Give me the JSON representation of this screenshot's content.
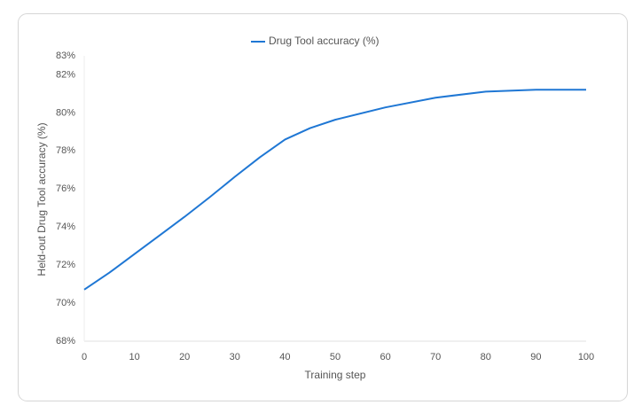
{
  "chart_data": {
    "type": "line",
    "legend": "top",
    "x_label": "Training step",
    "y_label": "Held-out Drug Tool accuracy (%)",
    "x": [
      0,
      5,
      10,
      15,
      20,
      25,
      30,
      35,
      40,
      45,
      50,
      60,
      70,
      80,
      90,
      100
    ],
    "series": [
      {
        "name": "Drug Tool accuracy (%)",
        "color": "#1f77d4",
        "values": [
          70.71,
          71.6,
          72.58,
          73.56,
          74.54,
          75.57,
          76.64,
          77.67,
          78.6,
          79.2,
          79.64,
          80.29,
          80.8,
          81.12,
          81.22,
          81.22
        ]
      }
    ],
    "xlim": [
      0,
      100
    ],
    "xticks": [
      0,
      10,
      20,
      30,
      40,
      50,
      60,
      70,
      80,
      90,
      100
    ],
    "ylim": [
      68,
      83
    ],
    "yticks": [
      {
        "value": 68,
        "label": "68%"
      },
      {
        "value": 70,
        "label": "70%"
      },
      {
        "value": 72,
        "label": "72%"
      },
      {
        "value": 74,
        "label": "74%"
      },
      {
        "value": 76,
        "label": "76%"
      },
      {
        "value": 78,
        "label": "78%"
      },
      {
        "value": 80,
        "label": "80%"
      },
      {
        "value": 82,
        "label": "82%"
      },
      {
        "value": 83,
        "label": "83%"
      }
    ],
    "grid": false
  }
}
